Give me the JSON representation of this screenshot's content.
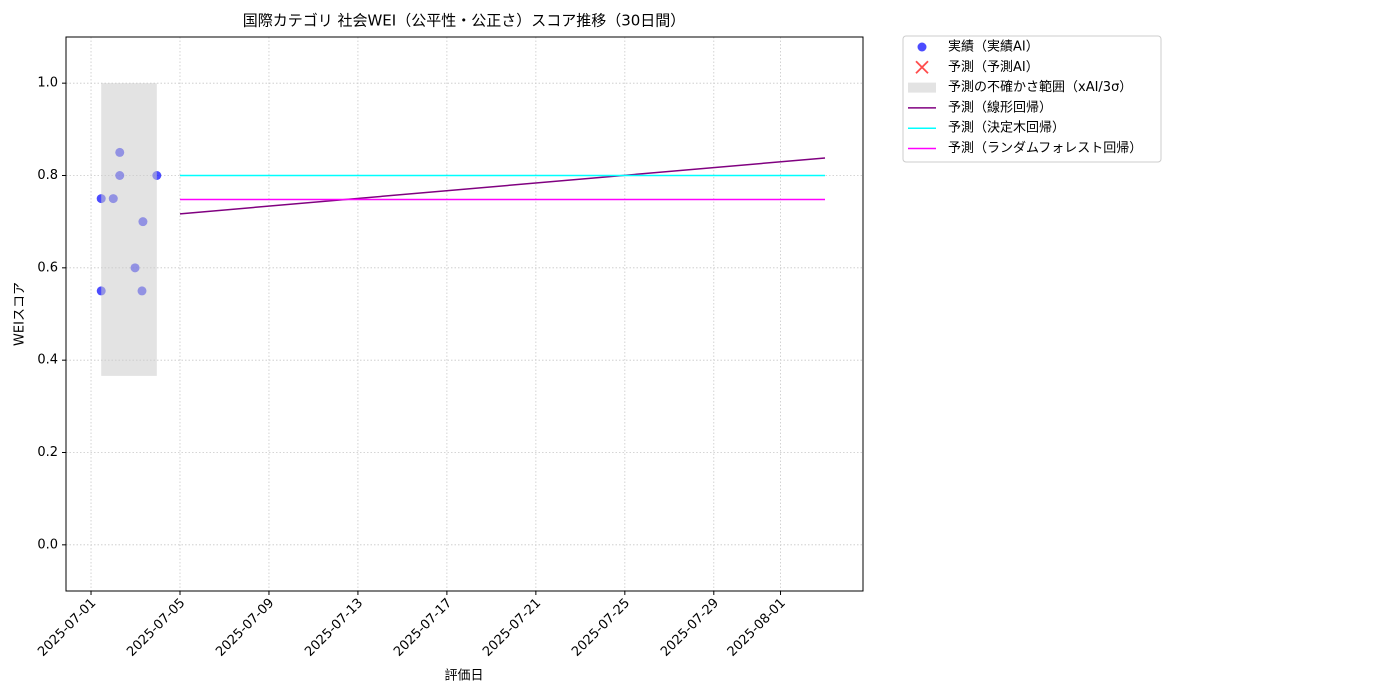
{
  "chart_data": {
    "type": "line",
    "title": "国際カテゴリ 社会WEI（公平性・公正さ）スコア推移（30日間）",
    "xlabel": "評価日",
    "ylabel": "WEIスコア",
    "xlim": [
      "2025-06-29T21:00",
      "2025-08-04T17:00"
    ],
    "xticks": [
      "2025-07-01",
      "2025-07-05",
      "2025-07-09",
      "2025-07-13",
      "2025-07-17",
      "2025-07-21",
      "2025-07-25",
      "2025-07-29",
      "2025-08-01"
    ],
    "ylim": [
      -0.1,
      1.1
    ],
    "yticks": [
      {
        "value": 0,
        "label": "0.0"
      },
      0.2,
      0.4,
      0.6,
      0.8,
      {
        "value": 1,
        "label": "1.0"
      }
    ],
    "grid": true,
    "legend": "outside upper right",
    "series": [
      {
        "name": "実績（実績AI）",
        "type": "scatter",
        "color": "#0000ff",
        "x": [
          "2025-07-01T11:00",
          "2025-07-01T11:00",
          "2025-07-02T00:00",
          "2025-07-02T07:00",
          "2025-07-02T07:00",
          "2025-07-02T23:30",
          "2025-07-03T07:00",
          "2025-07-03T08:00",
          "2025-07-03T23:00"
        ],
        "values": [
          0.75,
          0.55,
          0.75,
          0.85,
          0.8,
          0.6,
          0.55,
          0.7,
          0.8
        ]
      },
      {
        "name": "予測（予測AI）",
        "type": "cross",
        "color": "#ff0000",
        "x": [],
        "values": []
      },
      {
        "name": "予測の不確かさ範囲（xAI/3σ）",
        "type": "band",
        "color": "#cccccc",
        "x": [
          "2025-07-01T11:00",
          "2025-07-03T23:00"
        ],
        "low": 0.366,
        "high": 1.0
      },
      {
        "name": "予測（線形回帰）",
        "type": "line",
        "color": "#800080",
        "x": [
          "2025-07-05",
          "2025-08-03"
        ],
        "values": [
          0.717,
          0.838
        ]
      },
      {
        "name": "予測（決定木回帰）",
        "type": "line",
        "color": "#00ffff",
        "x": [
          "2025-07-05",
          "2025-08-03"
        ],
        "values": [
          0.8,
          0.8
        ]
      },
      {
        "name": "予測（ランダムフォレスト回帰）",
        "type": "line",
        "color": "#ff00ff",
        "x": [
          "2025-07-05",
          "2025-08-03"
        ],
        "values": [
          0.748,
          0.748
        ]
      }
    ]
  }
}
